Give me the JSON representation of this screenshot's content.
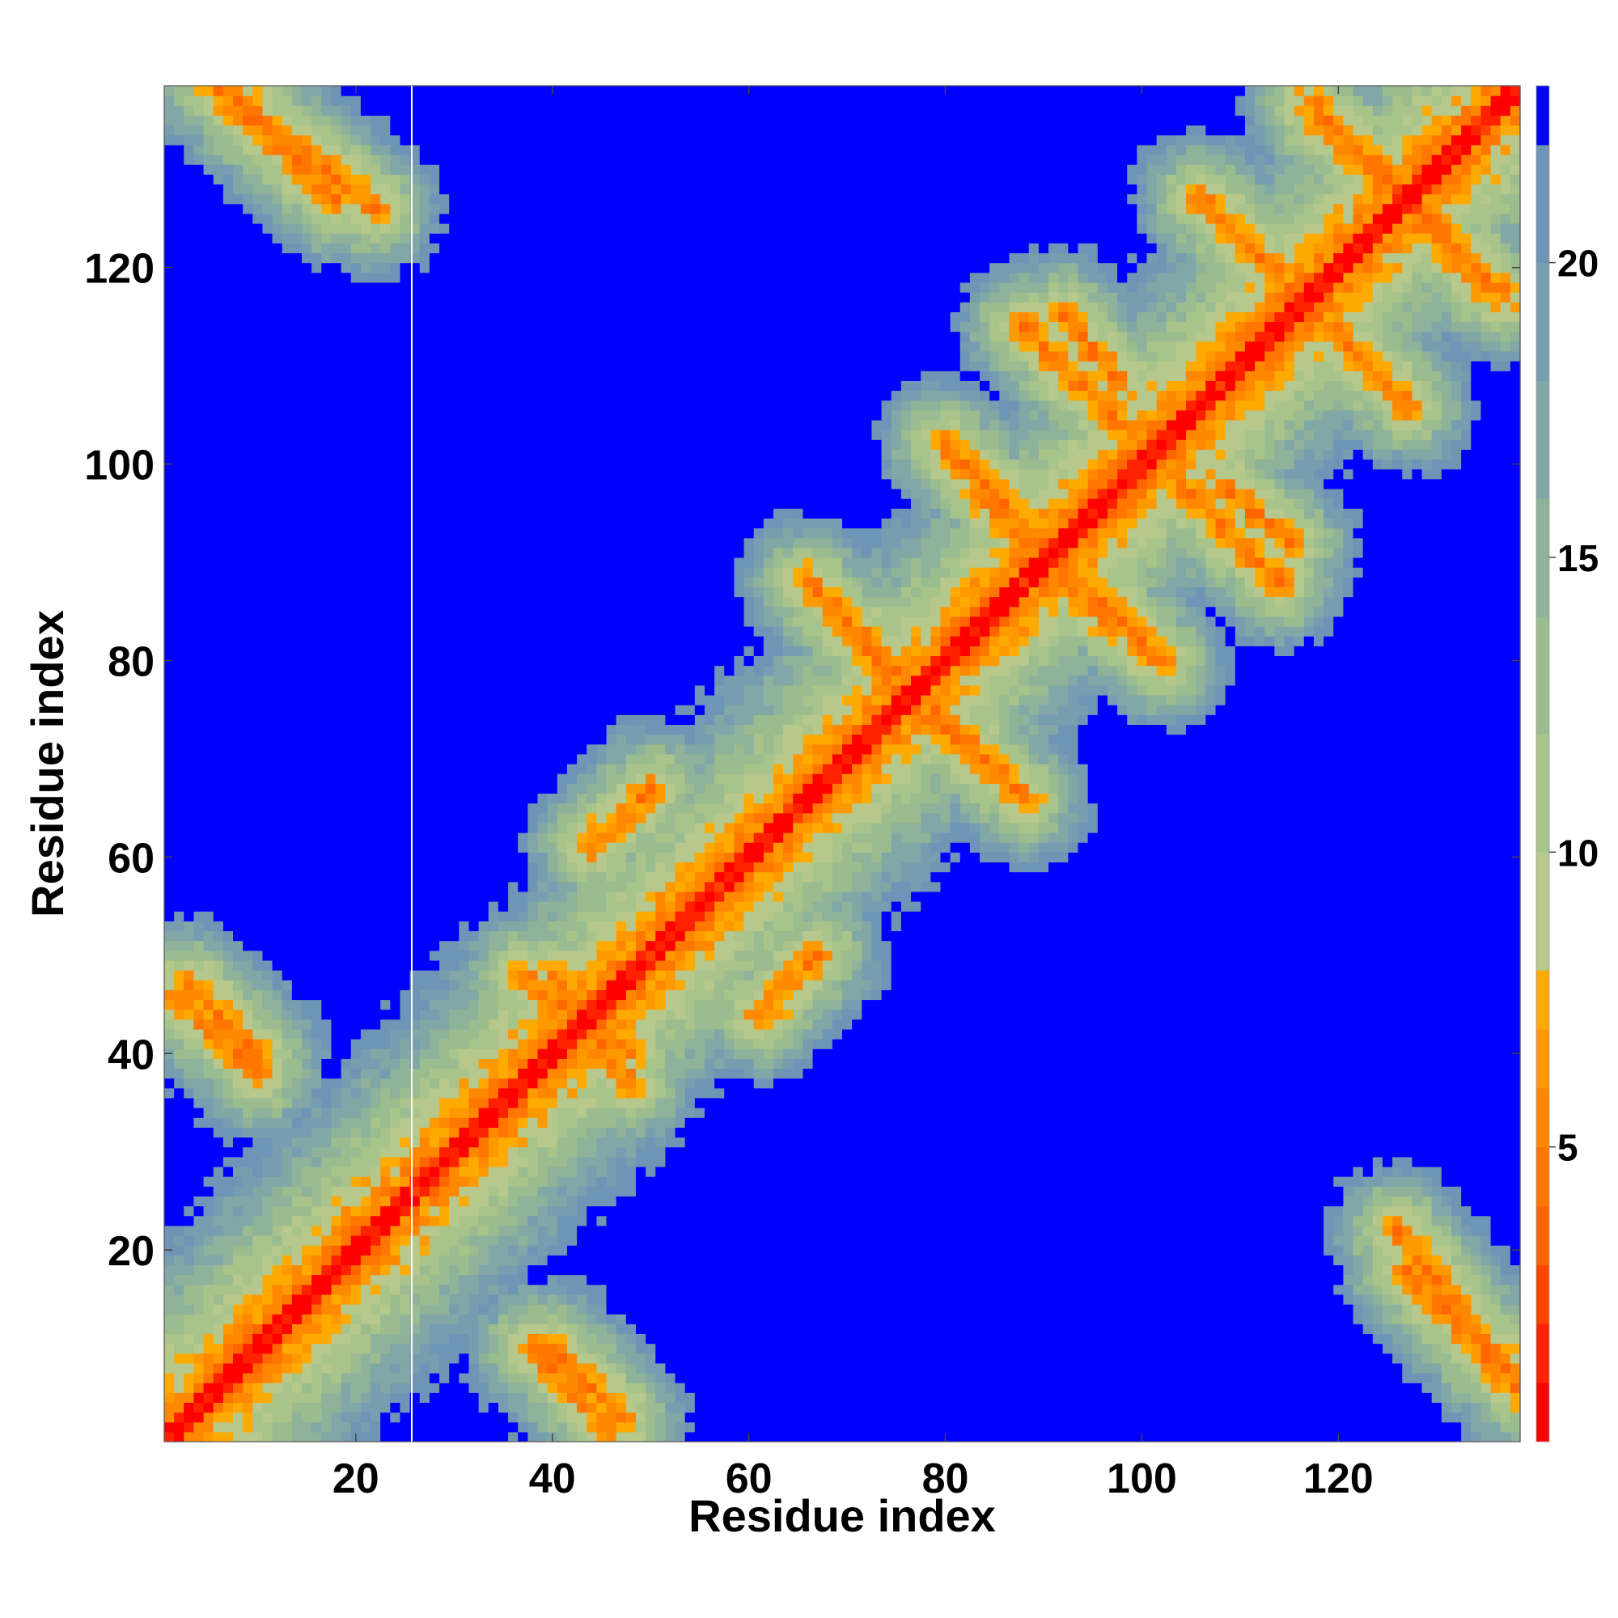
{
  "chart_data": {
    "type": "heatmap",
    "title": "",
    "xlabel": "Residue index",
    "ylabel": "Residue index",
    "xlim": [
      0.5,
      138.5
    ],
    "ylim": [
      0.5,
      138.5
    ],
    "n_residues": 138,
    "x_ticks": [
      20,
      40,
      60,
      80,
      100,
      120
    ],
    "y_ticks": [
      20,
      40,
      60,
      80,
      100,
      120
    ],
    "colorbar": {
      "range": [
        0,
        23
      ],
      "ticks": [
        5,
        10,
        15,
        20
      ],
      "levels": [
        {
          "from": 0,
          "to": 1,
          "color": "#ff0000"
        },
        {
          "from": 1,
          "to": 2,
          "color": "#ff2200"
        },
        {
          "from": 2,
          "to": 3,
          "color": "#ff4400"
        },
        {
          "from": 3,
          "to": 4,
          "color": "#ff6600"
        },
        {
          "from": 4,
          "to": 5,
          "color": "#ff7700"
        },
        {
          "from": 5,
          "to": 6,
          "color": "#ff8800"
        },
        {
          "from": 6,
          "to": 7,
          "color": "#ff9900"
        },
        {
          "from": 7,
          "to": 8,
          "color": "#ffaa00"
        },
        {
          "from": 8,
          "to": 10,
          "color": "#b6c88c"
        },
        {
          "from": 10,
          "to": 12,
          "color": "#a9c48b"
        },
        {
          "from": 12,
          "to": 14,
          "color": "#9bbc8e"
        },
        {
          "from": 14,
          "to": 16,
          "color": "#8eb29a"
        },
        {
          "from": 16,
          "to": 18,
          "color": "#81a7a6"
        },
        {
          "from": 18,
          "to": 20,
          "color": "#779db0"
        },
        {
          "from": 20,
          "to": 22,
          "color": "#6e95b6"
        },
        {
          "from": 22,
          "to": 23,
          "color": "#0000ff"
        }
      ]
    },
    "values_description_note": "",
    "diagonal_width": 1.5,
    "contact_bands": [
      {
        "a": [
          44,
          50
        ],
        "b": [
          61,
          67
        ],
        "orientation": "anti"
      },
      {
        "a": [
          48,
          60
        ],
        "b": [
          50,
          62
        ],
        "orientation": "anti"
      },
      {
        "a": [
          40,
          48
        ],
        "b": [
          48,
          37
        ],
        "orientation": "anti"
      },
      {
        "a": [
          66,
          78
        ],
        "b": [
          88,
          76
        ],
        "orientation": "anti"
      },
      {
        "a": [
          76,
          86
        ],
        "b": [
          76,
          68
        ],
        "orientation": "anti"
      },
      {
        "a": [
          81,
          92
        ],
        "b": [
          101,
          90
        ],
        "orientation": "anti"
      },
      {
        "a": [
          92,
          102
        ],
        "b": [
          88,
          80
        ],
        "orientation": "anti"
      },
      {
        "a": [
          88,
          98
        ],
        "b": [
          114,
          104
        ],
        "orientation": "anti"
      },
      {
        "a": [
          108,
          115
        ],
        "b": [
          98,
          92
        ],
        "orientation": "anti"
      },
      {
        "a": [
          106,
          116
        ],
        "b": [
          127,
          117
        ],
        "orientation": "anti"
      },
      {
        "a": [
          117,
          127
        ],
        "b": [
          137,
          127
        ],
        "orientation": "anti"
      },
      {
        "a": [
          117,
          127
        ],
        "b": [
          116,
          106
        ],
        "orientation": "anti"
      },
      {
        "a": [
          127,
          135
        ],
        "b": [
          126,
          118
        ],
        "orientation": "anti"
      },
      {
        "a": [
          6,
          18
        ],
        "b": [
          138,
          127
        ],
        "orientation": "anti"
      },
      {
        "a": [
          3,
          10
        ],
        "b": [
          47,
          40
        ],
        "orientation": "anti"
      },
      {
        "a": [
          38,
          46
        ],
        "b": [
          10,
          2
        ],
        "orientation": "anti"
      },
      {
        "a": [
          126,
          137
        ],
        "b": [
          22,
          8
        ],
        "orientation": "anti"
      }
    ]
  }
}
